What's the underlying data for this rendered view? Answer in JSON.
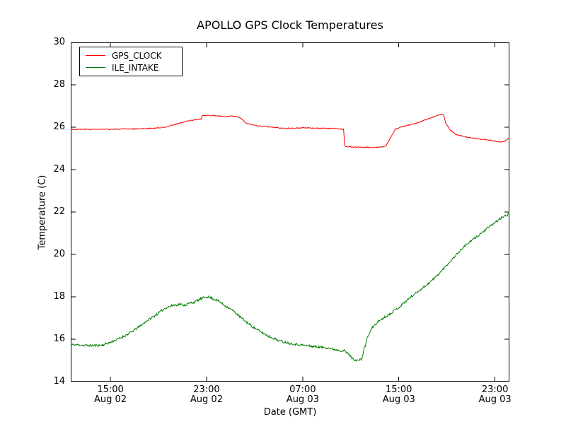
{
  "figure": {
    "title": "APOLLO GPS Clock Temperatures",
    "xlabel": "Date (GMT)",
    "ylabel": "Temperature (C)"
  },
  "chart_data": {
    "type": "line",
    "title": "APOLLO GPS Clock Temperatures",
    "xlabel": "Date (GMT)",
    "ylabel": "Temperature (C)",
    "xlim": [
      11.7,
      48.2
    ],
    "ylim": [
      14,
      30
    ],
    "x_unit": "hours since Aug 02 00:00 GMT",
    "grid": false,
    "legend_position": "upper-left",
    "frame_color": "#000000",
    "background_color": "#ffffff",
    "sample_step": 0.05,
    "y_ticks": [
      14,
      16,
      18,
      20,
      22,
      24,
      26,
      28,
      30
    ],
    "x_ticks": [
      {
        "value": 15,
        "time": "15:00",
        "date": "Aug 02"
      },
      {
        "value": 23,
        "time": "23:00",
        "date": "Aug 02"
      },
      {
        "value": 31,
        "time": "07:00",
        "date": "Aug 03"
      },
      {
        "value": 39,
        "time": "15:00",
        "date": "Aug 03"
      },
      {
        "value": 47,
        "time": "23:00",
        "date": "Aug 03"
      }
    ],
    "series": [
      {
        "name": "GPS_CLOCK",
        "color": "#ff0000",
        "noise": 0.022,
        "seed": 3,
        "points": [
          [
            11.7,
            25.9
          ],
          [
            13.0,
            25.9
          ],
          [
            15.0,
            25.9
          ],
          [
            17.0,
            25.92
          ],
          [
            18.5,
            25.95
          ],
          [
            19.5,
            26.0
          ],
          [
            20.5,
            26.15
          ],
          [
            21.3,
            26.27
          ],
          [
            22.0,
            26.35
          ],
          [
            22.55,
            26.38
          ],
          [
            22.65,
            26.55
          ],
          [
            23.5,
            26.55
          ],
          [
            24.5,
            26.5
          ],
          [
            25.3,
            26.52
          ],
          [
            25.8,
            26.45
          ],
          [
            26.3,
            26.2
          ],
          [
            26.8,
            26.1
          ],
          [
            27.5,
            26.05
          ],
          [
            28.5,
            26.0
          ],
          [
            29.5,
            25.95
          ],
          [
            31.0,
            25.97
          ],
          [
            32.5,
            25.95
          ],
          [
            33.5,
            25.95
          ],
          [
            34.4,
            25.9
          ],
          [
            34.5,
            25.1
          ],
          [
            35.0,
            25.07
          ],
          [
            36.0,
            25.05
          ],
          [
            36.8,
            25.05
          ],
          [
            37.4,
            25.05
          ],
          [
            37.9,
            25.1
          ],
          [
            38.3,
            25.5
          ],
          [
            38.7,
            25.9
          ],
          [
            39.1,
            26.0
          ],
          [
            39.5,
            26.05
          ],
          [
            40.2,
            26.15
          ],
          [
            41.0,
            26.3
          ],
          [
            41.7,
            26.45
          ],
          [
            42.2,
            26.55
          ],
          [
            42.6,
            26.62
          ],
          [
            42.75,
            26.55
          ],
          [
            42.9,
            26.2
          ],
          [
            43.3,
            25.85
          ],
          [
            43.8,
            25.65
          ],
          [
            44.5,
            25.55
          ],
          [
            45.5,
            25.45
          ],
          [
            46.5,
            25.4
          ],
          [
            47.3,
            25.3
          ],
          [
            47.8,
            25.33
          ],
          [
            48.2,
            25.5
          ]
        ]
      },
      {
        "name": "ILE_INTAKE",
        "color": "#007f00",
        "noise": 0.055,
        "seed": 11,
        "points": [
          [
            11.7,
            15.75
          ],
          [
            12.5,
            15.72
          ],
          [
            13.5,
            15.7
          ],
          [
            14.3,
            15.72
          ],
          [
            15.0,
            15.85
          ],
          [
            15.8,
            16.05
          ],
          [
            16.5,
            16.25
          ],
          [
            17.3,
            16.55
          ],
          [
            18.0,
            16.85
          ],
          [
            18.8,
            17.15
          ],
          [
            19.5,
            17.45
          ],
          [
            20.2,
            17.6
          ],
          [
            20.8,
            17.65
          ],
          [
            21.2,
            17.6
          ],
          [
            21.6,
            17.7
          ],
          [
            22.0,
            17.75
          ],
          [
            22.5,
            17.9
          ],
          [
            23.0,
            18.0
          ],
          [
            23.4,
            17.95
          ],
          [
            24.0,
            17.8
          ],
          [
            24.5,
            17.6
          ],
          [
            25.2,
            17.35
          ],
          [
            26.0,
            16.95
          ],
          [
            26.8,
            16.6
          ],
          [
            27.5,
            16.35
          ],
          [
            28.3,
            16.1
          ],
          [
            29.2,
            15.9
          ],
          [
            30.0,
            15.8
          ],
          [
            31.0,
            15.72
          ],
          [
            32.0,
            15.65
          ],
          [
            33.0,
            15.6
          ],
          [
            33.8,
            15.5
          ],
          [
            34.5,
            15.45
          ],
          [
            34.9,
            15.25
          ],
          [
            35.2,
            15.05
          ],
          [
            35.6,
            15.0
          ],
          [
            35.9,
            15.05
          ],
          [
            36.1,
            15.5
          ],
          [
            36.4,
            16.1
          ],
          [
            36.8,
            16.55
          ],
          [
            37.3,
            16.85
          ],
          [
            38.0,
            17.1
          ],
          [
            39.0,
            17.5
          ],
          [
            39.8,
            17.9
          ],
          [
            40.6,
            18.25
          ],
          [
            41.4,
            18.6
          ],
          [
            42.2,
            19.0
          ],
          [
            43.0,
            19.5
          ],
          [
            43.8,
            20.0
          ],
          [
            44.6,
            20.45
          ],
          [
            45.4,
            20.8
          ],
          [
            46.2,
            21.15
          ],
          [
            47.0,
            21.5
          ],
          [
            47.6,
            21.75
          ],
          [
            48.0,
            21.85
          ],
          [
            48.2,
            22.0
          ]
        ]
      }
    ]
  }
}
